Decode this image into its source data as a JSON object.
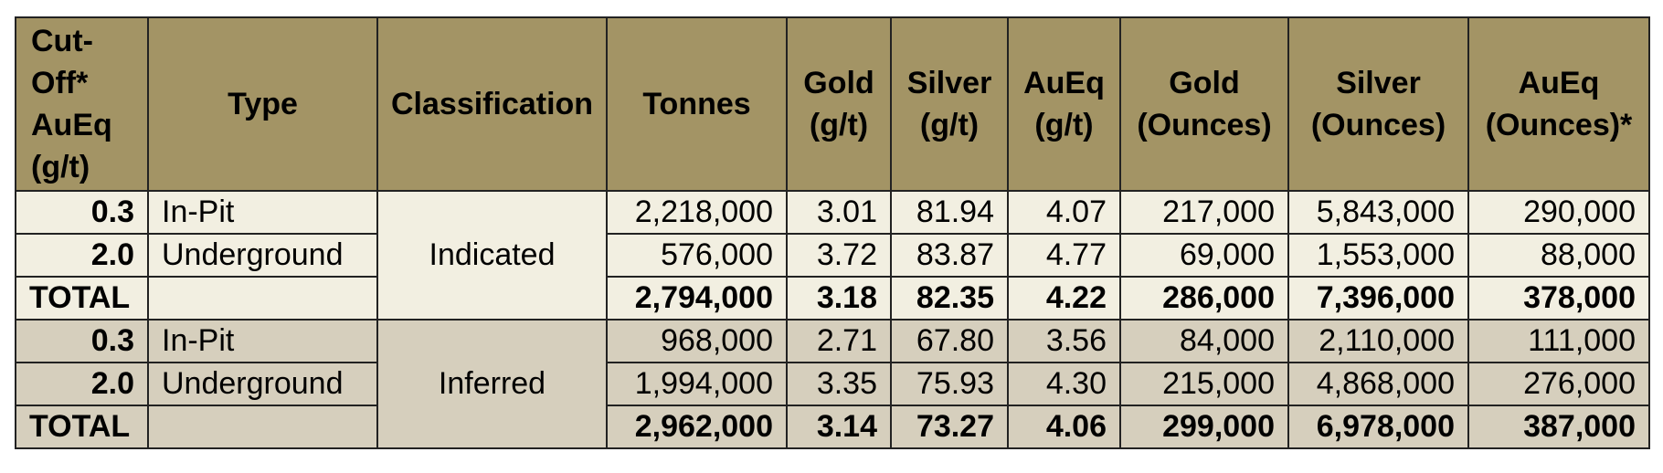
{
  "headers": [
    "Cut-Off* AuEq (g/t)",
    "Type",
    "Classification",
    "Tonnes",
    "Gold (g/t)",
    "Silver (g/t)",
    "AuEq (g/t)",
    "Gold (Ounces)",
    "Silver (Ounces)",
    "AuEq (Ounces)*"
  ],
  "groups": [
    {
      "classification": "Indicated",
      "rows": [
        {
          "cutoff": "0.3",
          "type": "In-Pit",
          "tonnes": "2,218,000",
          "gold_gt": "3.01",
          "silver_gt": "81.94",
          "aueq_gt": "4.07",
          "gold_oz": "217,000",
          "silver_oz": "5,843,000",
          "aueq_oz": "290,000"
        },
        {
          "cutoff": "2.0",
          "type": "Underground",
          "tonnes": "576,000",
          "gold_gt": "3.72",
          "silver_gt": "83.87",
          "aueq_gt": "4.77",
          "gold_oz": "69,000",
          "silver_oz": "1,553,000",
          "aueq_oz": "88,000"
        },
        {
          "cutoff": "TOTAL",
          "type": "",
          "tonnes": "2,794,000",
          "gold_gt": "3.18",
          "silver_gt": "82.35",
          "aueq_gt": "4.22",
          "gold_oz": "286,000",
          "silver_oz": "7,396,000",
          "aueq_oz": "378,000"
        }
      ]
    },
    {
      "classification": "Inferred",
      "rows": [
        {
          "cutoff": "0.3",
          "type": "In-Pit",
          "tonnes": "968,000",
          "gold_gt": "2.71",
          "silver_gt": "67.80",
          "aueq_gt": "3.56",
          "gold_oz": "84,000",
          "silver_oz": "2,110,000",
          "aueq_oz": "111,000"
        },
        {
          "cutoff": "2.0",
          "type": "Underground",
          "tonnes": "1,994,000",
          "gold_gt": "3.35",
          "silver_gt": "75.93",
          "aueq_gt": "4.30",
          "gold_oz": "215,000",
          "silver_oz": "4,868,000",
          "aueq_oz": "276,000"
        },
        {
          "cutoff": "TOTAL",
          "type": "",
          "tonnes": "2,962,000",
          "gold_gt": "3.14",
          "silver_gt": "73.27",
          "aueq_gt": "4.06",
          "gold_oz": "299,000",
          "silver_oz": "6,978,000",
          "aueq_oz": "387,000"
        }
      ]
    }
  ],
  "colors": {
    "header_bg": "#a39465",
    "indicated_bg": "#f2efe1",
    "inferred_bg": "#d6cfbd",
    "border": "#222222"
  }
}
